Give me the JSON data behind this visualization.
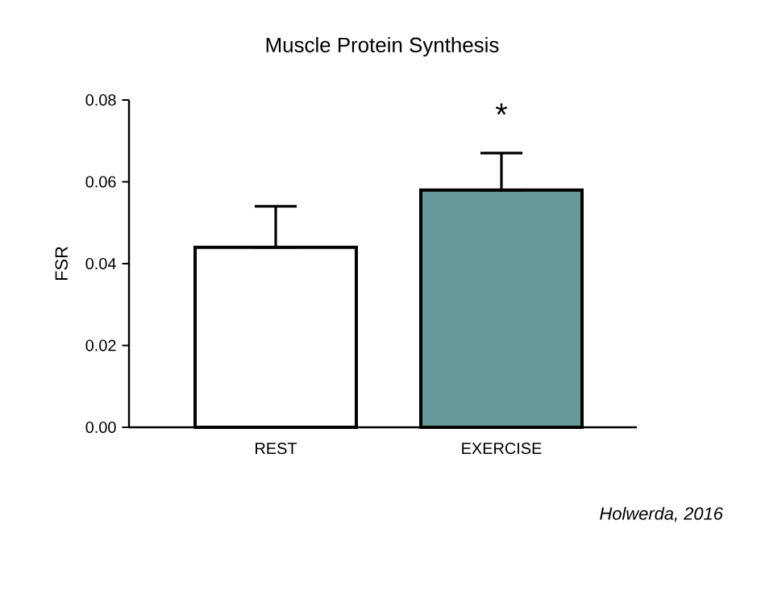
{
  "chart_data": {
    "type": "bar",
    "title": "Muscle Protein Synthesis",
    "ylabel": "FSR",
    "categories": [
      "REST",
      "EXERCISE"
    ],
    "values": [
      0.044,
      0.058
    ],
    "colors": [
      "#ffffff",
      "#669999"
    ],
    "errors": [
      [
        0.044,
        0.054
      ],
      [
        0.058,
        0.067
      ]
    ],
    "ylim": [
      0,
      0.08
    ],
    "yticks": [
      {
        "value": 0,
        "label": "0.00"
      },
      {
        "value": 0.02,
        "label": "0.02"
      },
      {
        "value": 0.04,
        "label": "0.04"
      },
      {
        "value": 0.06,
        "label": "0.06"
      },
      {
        "value": 0.08,
        "label": "0.08"
      }
    ],
    "annotations": [
      "*",
      "Holwerda, 2016"
    ]
  }
}
